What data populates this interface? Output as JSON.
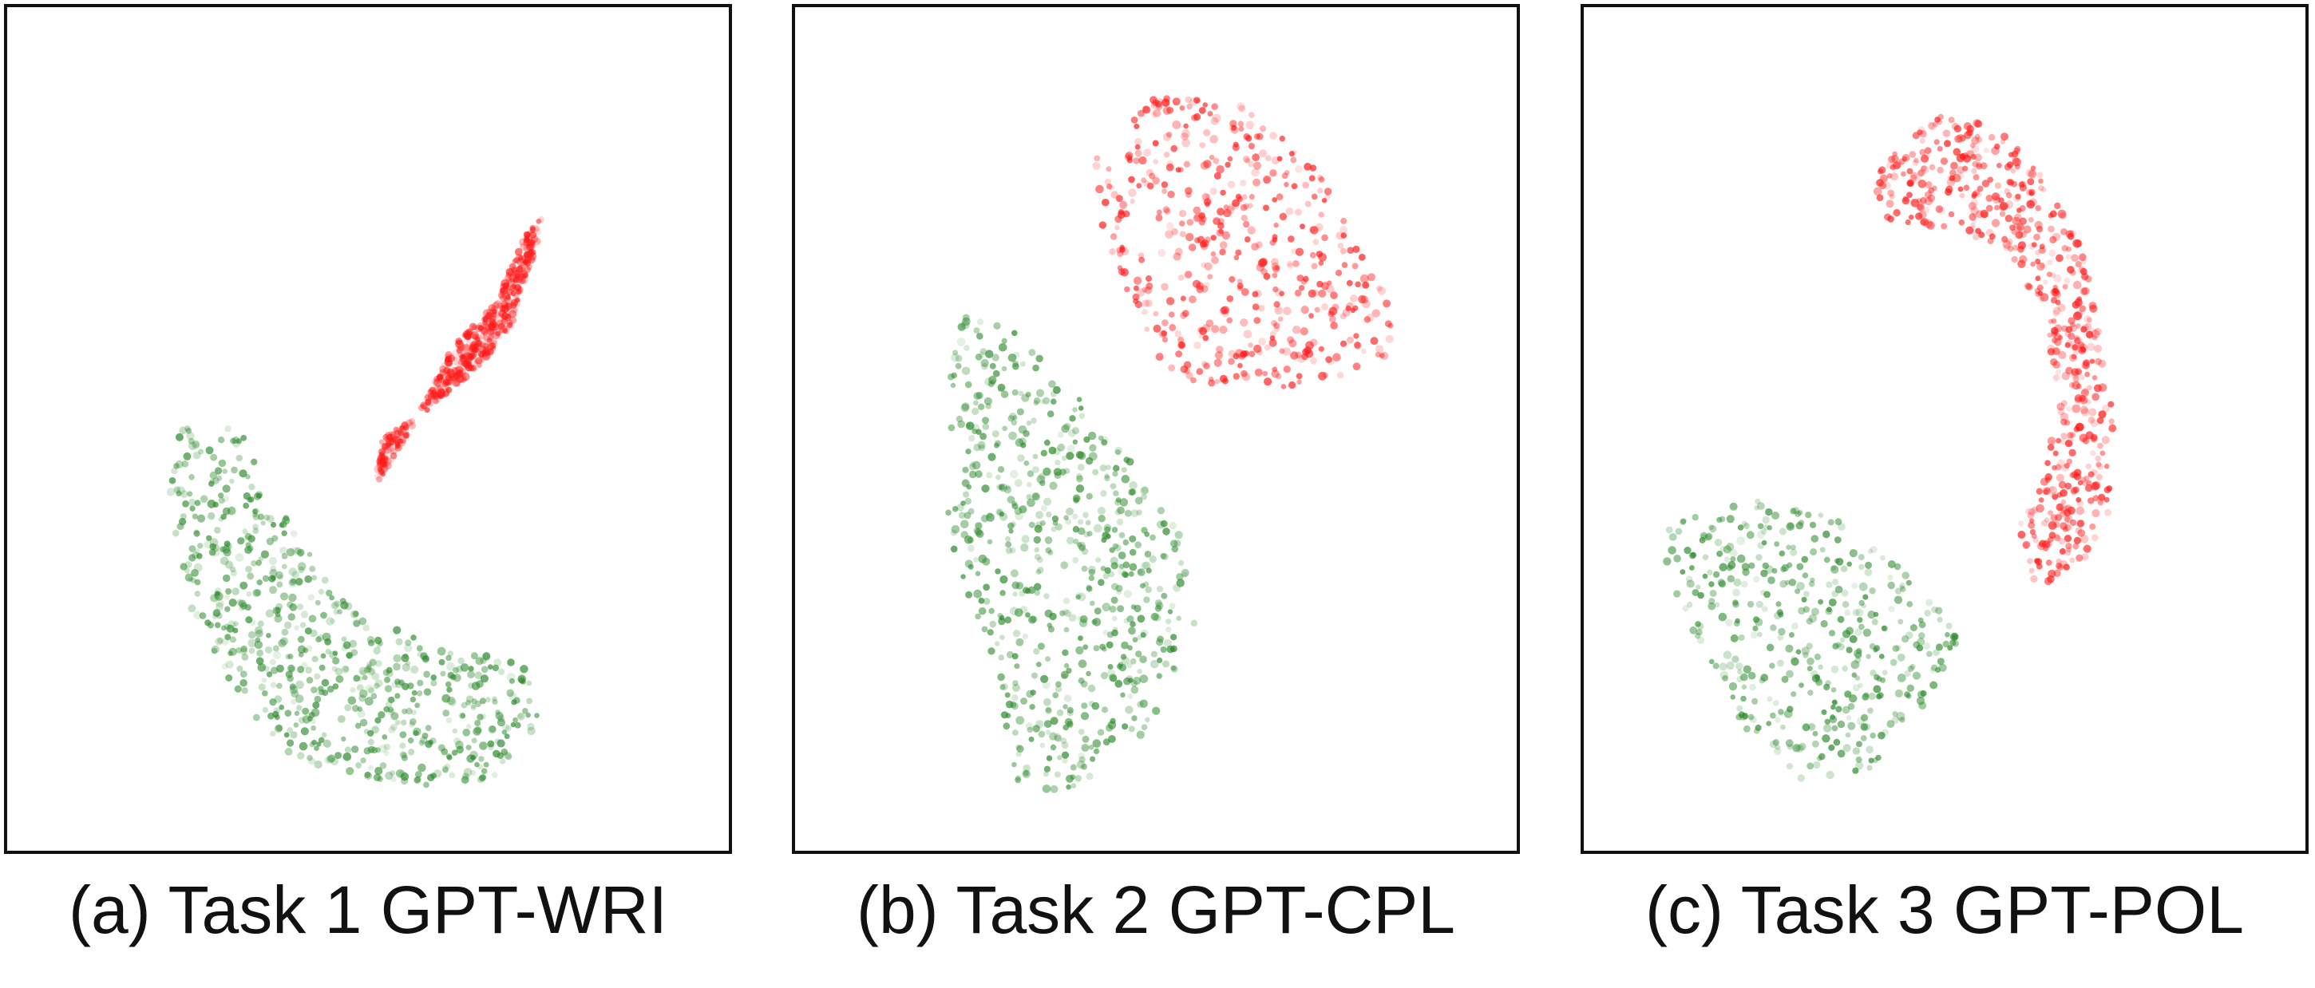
{
  "colors": {
    "class_a": "#2e8b2e",
    "class_b": "#ff1a1a",
    "frame": "#111111"
  },
  "chart_data": [
    {
      "type": "scatter",
      "title": "(a) Task 1 GPT-WRI",
      "xlabel": "",
      "ylabel": "",
      "xlim": [
        0,
        100
      ],
      "ylim": [
        0,
        100
      ],
      "grid": false,
      "series": [
        {
          "color": "#ff1a1a",
          "approx_points": 450,
          "region": [
            [
              51,
              57
            ],
            [
              56,
              50
            ],
            [
              62,
              40
            ],
            [
              68,
              35
            ],
            [
              72,
              27
            ],
            [
              75,
              24
            ],
            [
              73,
              30
            ],
            [
              70,
              38
            ],
            [
              65,
              43
            ],
            [
              58,
              48
            ],
            [
              52,
              51
            ]
          ]
        },
        {
          "color": "#2e8b2e",
          "approx_points": 700,
          "region": [
            [
              24,
              48
            ],
            [
              32,
              50
            ],
            [
              38,
              60
            ],
            [
              48,
              72
            ],
            [
              60,
              76
            ],
            [
              72,
              78
            ],
            [
              74,
              85
            ],
            [
              68,
              92
            ],
            [
              60,
              93
            ],
            [
              50,
              92
            ],
            [
              40,
              90
            ],
            [
              32,
              83
            ],
            [
              25,
              72
            ],
            [
              22,
              58
            ]
          ]
        }
      ]
    },
    {
      "type": "scatter",
      "title": "(b) Task 2 GPT-CPL",
      "xlabel": "",
      "ylabel": "",
      "xlim": [
        0,
        100
      ],
      "ylim": [
        0,
        100
      ],
      "grid": false,
      "series": [
        {
          "color": "#ff1a1a",
          "approx_points": 500,
          "region": [
            [
              40,
              18
            ],
            [
              50,
              10
            ],
            [
              62,
              11
            ],
            [
              72,
              18
            ],
            [
              80,
              30
            ],
            [
              85,
              40
            ],
            [
              76,
              44
            ],
            [
              62,
              46
            ],
            [
              52,
              44
            ],
            [
              46,
              35
            ],
            [
              42,
              26
            ]
          ]
        },
        {
          "color": "#2e8b2e",
          "approx_points": 650,
          "region": [
            [
              23,
              35
            ],
            [
              30,
              38
            ],
            [
              38,
              45
            ],
            [
              46,
              53
            ],
            [
              53,
              62
            ],
            [
              56,
              72
            ],
            [
              52,
              82
            ],
            [
              45,
              90
            ],
            [
              38,
              94
            ],
            [
              30,
              92
            ],
            [
              28,
              80
            ],
            [
              22,
              67
            ],
            [
              20,
              55
            ],
            [
              21,
              44
            ]
          ]
        }
      ]
    },
    {
      "type": "scatter",
      "title": "(c) Task 3 GPT-POL",
      "xlabel": "",
      "ylabel": "",
      "xlim": [
        0,
        100
      ],
      "ylim": [
        0,
        100
      ],
      "grid": false,
      "series": [
        {
          "color": "#ff1a1a",
          "approx_points": 600,
          "region": [
            [
              40,
              20
            ],
            [
              48,
              12
            ],
            [
              58,
              14
            ],
            [
              66,
              22
            ],
            [
              70,
              30
            ],
            [
              72,
              40
            ],
            [
              74,
              50
            ],
            [
              73,
              60
            ],
            [
              70,
              66
            ],
            [
              62,
              70
            ],
            [
              60,
              62
            ],
            [
              64,
              56
            ],
            [
              66,
              46
            ],
            [
              64,
              36
            ],
            [
              58,
              28
            ],
            [
              50,
              26
            ],
            [
              42,
              25
            ]
          ]
        },
        {
          "color": "#2e8b2e",
          "approx_points": 450,
          "region": [
            [
              10,
              62
            ],
            [
              22,
              58
            ],
            [
              36,
              61
            ],
            [
              46,
              68
            ],
            [
              52,
              75
            ],
            [
              46,
              85
            ],
            [
              38,
              92
            ],
            [
              30,
              92
            ],
            [
              22,
              86
            ],
            [
              17,
              78
            ],
            [
              12,
              70
            ]
          ]
        }
      ]
    }
  ]
}
